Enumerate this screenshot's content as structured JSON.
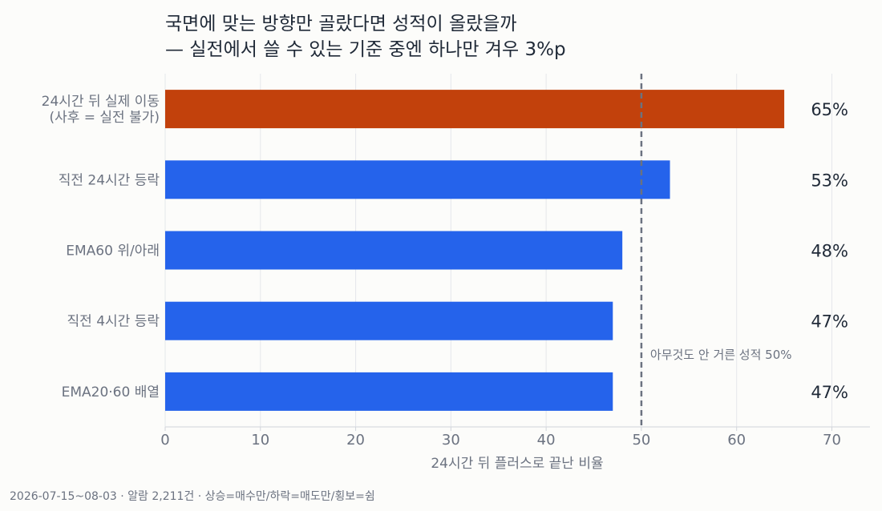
{
  "title": [
    "국면에 맞는 방향만 골랐다면 성적이 올랐을까",
    "— 실전에서 쓸 수 있는 기준 중엔 하나만 겨우 3%p"
  ],
  "footer": "2026-07-15~08-03 · 알람 2,211건 · 상승=매수만/하락=매도만/횡보=쉼",
  "colors": {
    "highlight": "#c2410c",
    "bar": "#2563eb",
    "reference": "#6b7280"
  },
  "chart_data": {
    "type": "bar",
    "orientation": "horizontal",
    "categories": [
      [
        "24시간 뒤 실제 이동",
        "(사후 = 실전 불가)"
      ],
      [
        "직전 24시간 등락"
      ],
      [
        "EMA60 위/아래"
      ],
      [
        "직전 4시간 등락"
      ],
      [
        "EMA20·60 배열"
      ]
    ],
    "values": [
      65,
      53,
      48,
      47,
      47
    ],
    "value_labels": [
      "65%",
      "53%",
      "48%",
      "47%",
      "47%"
    ],
    "highlight_index": 0,
    "xlabel": "24시간 뒤 플러스로 끝난 비율",
    "xlim": [
      0,
      74
    ],
    "xticks": [
      0,
      10,
      20,
      30,
      40,
      50,
      60,
      70
    ],
    "reference_line": {
      "value": 50,
      "label": "아무것도 안 거른 성적 50%"
    },
    "grid": true
  }
}
